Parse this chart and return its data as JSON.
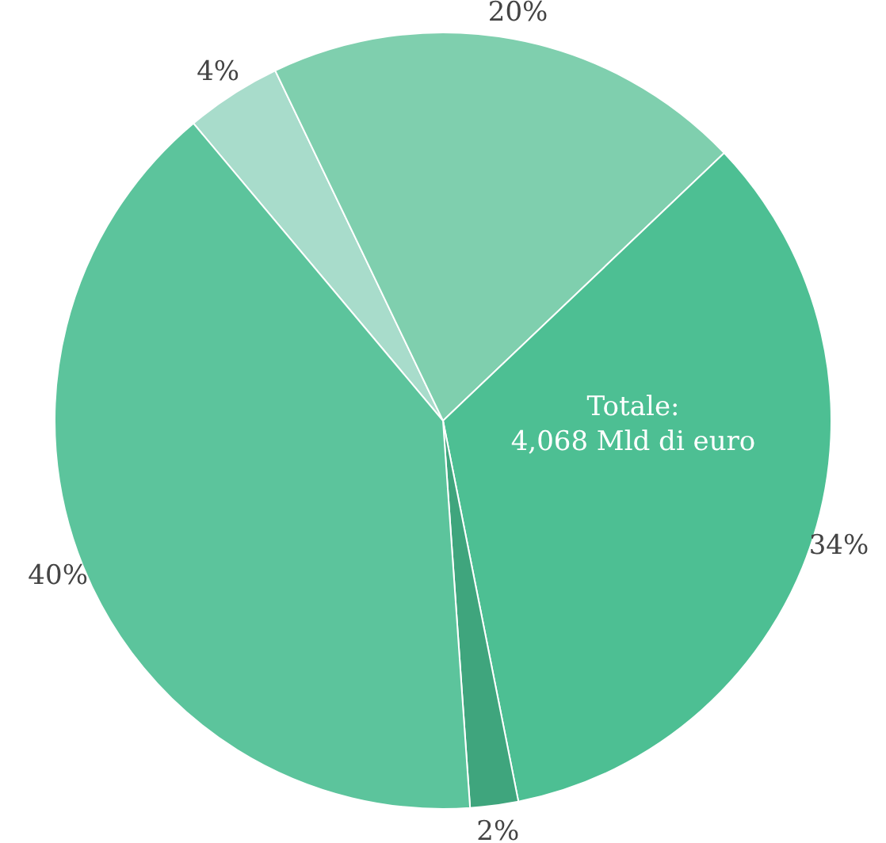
{
  "chart_data": {
    "type": "pie",
    "categories": [
      null,
      null,
      null,
      null,
      null
    ],
    "values": [
      4,
      20,
      34,
      2,
      40
    ],
    "value_labels": [
      "4%",
      "20%",
      "34%",
      "2%",
      "40%"
    ],
    "colors": [
      "#a8dccb",
      "#7fcfae",
      "#4dbf93",
      "#3fa57d",
      "#5cc49c"
    ],
    "annotations": [
      "Totale:\n4,068 Mld di euro"
    ],
    "legend": false
  }
}
